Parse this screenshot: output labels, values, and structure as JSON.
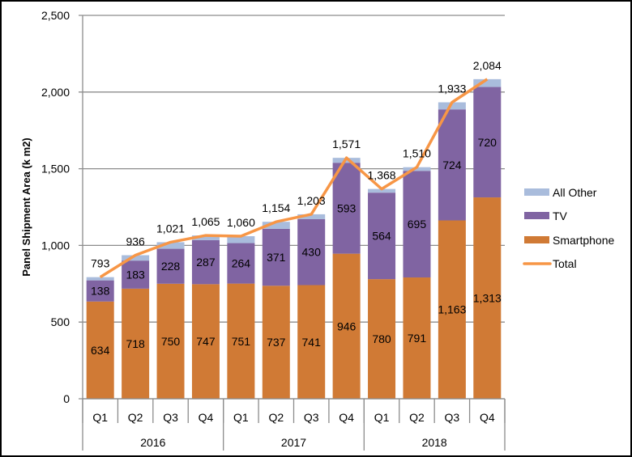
{
  "chart_data": {
    "type": "bar",
    "stacked": true,
    "title": "",
    "xlabel": "",
    "ylabel": "Panel Shipment Area (k m2)",
    "ylim": [
      0,
      2500
    ],
    "yticks": [
      0,
      500,
      1000,
      1500,
      2000,
      2500
    ],
    "ytick_labels": [
      "0",
      "500",
      "1,000",
      "1,500",
      "2,000",
      "2,500"
    ],
    "grid": true,
    "legend_position": "right",
    "categories": [
      "Q1",
      "Q2",
      "Q3",
      "Q4",
      "Q1",
      "Q2",
      "Q3",
      "Q4",
      "Q1",
      "Q2",
      "Q3",
      "Q4"
    ],
    "groups": [
      {
        "label": "2016",
        "count": 4
      },
      {
        "label": "2017",
        "count": 4
      },
      {
        "label": "2018",
        "count": 4
      }
    ],
    "series": [
      {
        "name": "Smartphone",
        "kind": "bar",
        "color": "#D07A35",
        "values": [
          634,
          718,
          750,
          747,
          751,
          737,
          741,
          946,
          780,
          791,
          1163,
          1313
        ],
        "labels": [
          "634",
          "718",
          "750",
          "747",
          "751",
          "737",
          "741",
          "946",
          "780",
          "791",
          "1,163",
          "1,313"
        ]
      },
      {
        "name": "TV",
        "kind": "bar",
        "color": "#8064A2",
        "values": [
          138,
          183,
          228,
          287,
          264,
          371,
          430,
          593,
          564,
          695,
          724,
          720
        ],
        "labels": [
          "138",
          "183",
          "228",
          "287",
          "264",
          "371",
          "430",
          "593",
          "564",
          "695",
          "724",
          "720"
        ]
      },
      {
        "name": "All Other",
        "kind": "bar",
        "color": "#A9BCDC",
        "values": [
          21,
          35,
          43,
          31,
          45,
          46,
          32,
          32,
          24,
          24,
          46,
          51
        ],
        "labels": []
      },
      {
        "name": "Total",
        "kind": "line",
        "color": "#F79646",
        "values": [
          793,
          936,
          1021,
          1065,
          1060,
          1154,
          1203,
          1571,
          1368,
          1510,
          1933,
          2084
        ],
        "labels": [
          "793",
          "936",
          "1,021",
          "1,065",
          "1,060",
          "1,154",
          "1,203",
          "1,571",
          "1,368",
          "1,510",
          "1,933",
          "2,084"
        ]
      }
    ],
    "legend": [
      "All Other",
      "TV",
      "Smartphone",
      "Total"
    ]
  }
}
